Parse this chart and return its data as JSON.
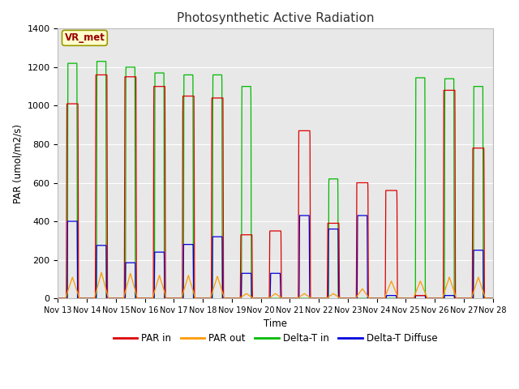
{
  "title": "Photosynthetic Active Radiation",
  "ylabel": "PAR (umol/m2/s)",
  "xlabel": "Time",
  "ylim": [
    0,
    1400
  ],
  "yticks": [
    0,
    200,
    400,
    600,
    800,
    1000,
    1200,
    1400
  ],
  "xtick_labels": [
    "Nov 13",
    "Nov 14",
    "Nov 15",
    "Nov 16",
    "Nov 17",
    "Nov 18",
    "Nov 19",
    "Nov 20",
    "Nov 21",
    "Nov 22",
    "Nov 23",
    "Nov 24",
    "Nov 25",
    "Nov 26",
    "Nov 27",
    "Nov 28"
  ],
  "colors": {
    "par_in": "#dd0000",
    "par_out": "#ff9900",
    "delta_t_in": "#00bb00",
    "delta_t_diffuse": "#0000dd"
  },
  "legend_labels": [
    "PAR in",
    "PAR out",
    "Delta-T in",
    "Delta-T Diffuse"
  ],
  "annotation_text": "VR_met",
  "annotation_fc": "#ffffcc",
  "annotation_ec": "#999900",
  "annotation_tc": "#990000",
  "fig_bg": "#ffffff",
  "plot_bg": "#e8e8e8",
  "grid_color": "#ffffff"
}
